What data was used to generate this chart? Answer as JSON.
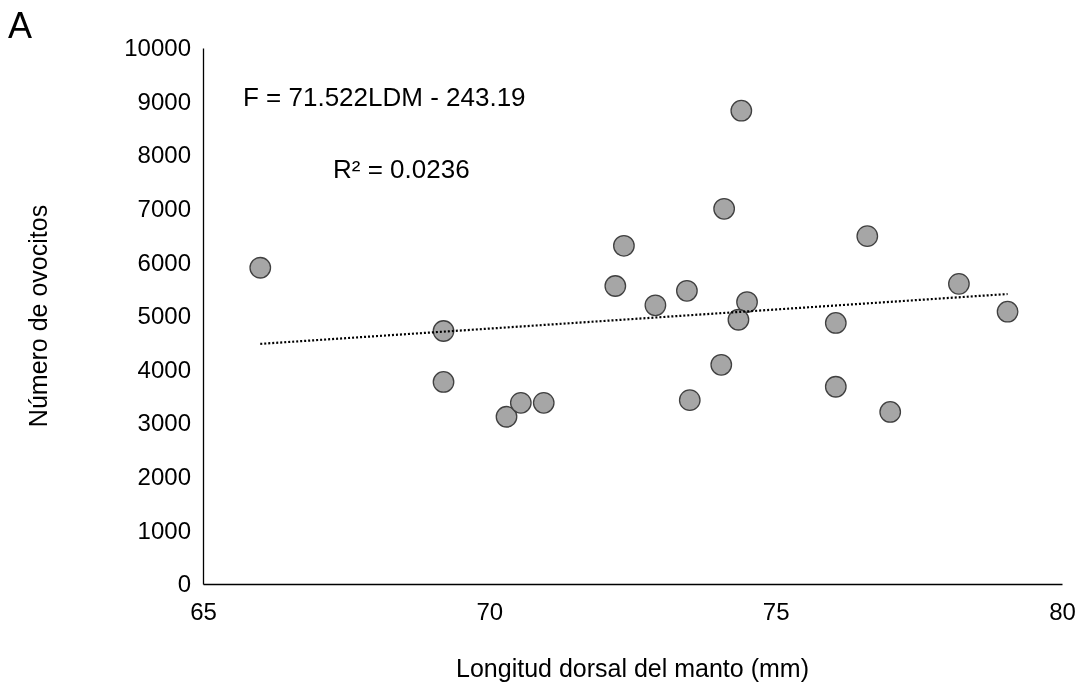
{
  "chart_data": {
    "type": "scatter",
    "xlabel": "Longitud dorsal del manto (mm)",
    "ylabel": "Número de ovocitos",
    "annotations": [
      "A",
      "F = 71.522LDM - 243.19",
      "R² = 0.0236"
    ],
    "xlim": [
      65,
      80
    ],
    "xticks": [
      65,
      70,
      75,
      80
    ],
    "ylim": [
      0,
      10000
    ],
    "yticks": [
      0,
      1000,
      2000,
      3000,
      4000,
      5000,
      6000,
      7000,
      8000,
      9000,
      10000
    ],
    "grid": false,
    "series": [
      {
        "color": "#a6a6a6",
        "marker": "circle",
        "x": [
          66.0,
          69.2,
          69.2,
          70.3,
          70.55,
          70.95,
          72.2,
          72.35,
          72.9,
          73.45,
          73.5,
          74.1,
          74.05,
          74.4,
          74.5,
          74.35,
          76.05,
          76.05,
          76.6,
          77.0,
          78.2,
          79.05
        ],
        "values": [
          5900,
          4720,
          3770,
          3120,
          3380,
          3380,
          5560,
          6310,
          5200,
          5470,
          3430,
          7000,
          4090,
          8830,
          5260,
          4930,
          4870,
          3680,
          6490,
          3210,
          5600,
          5080
        ]
      },
      {
        "type": "line",
        "color": "#000000",
        "line_style": "dotted",
        "marker": "none",
        "x": [
          66.0,
          79.05
        ],
        "values": [
          4480,
          5410
        ]
      }
    ]
  }
}
